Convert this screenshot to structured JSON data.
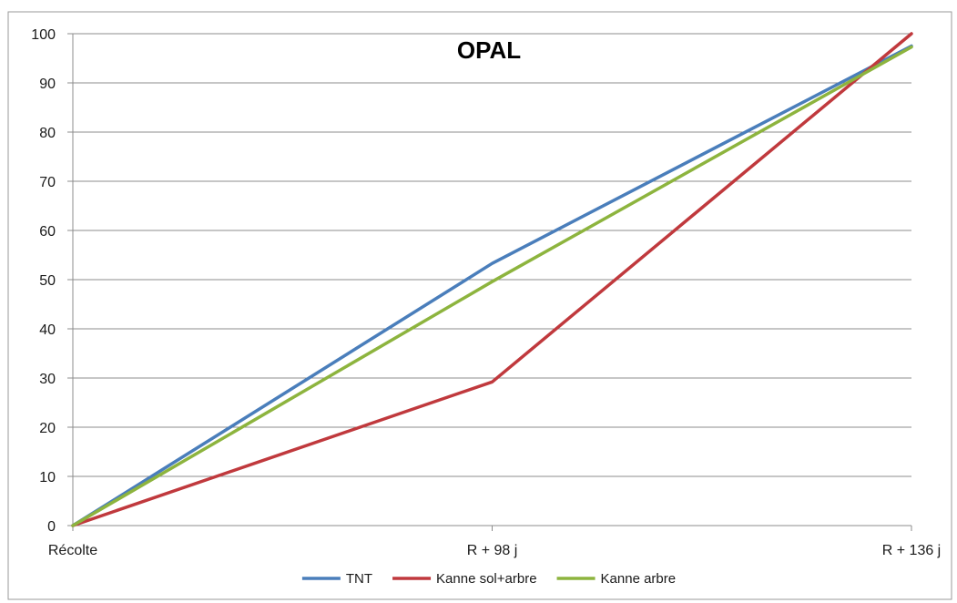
{
  "chart_data": {
    "type": "line",
    "title": "OPAL",
    "categories": [
      "Récolte",
      "R + 98 j",
      "R + 136 j"
    ],
    "ylim": [
      0,
      100
    ],
    "yticks": [
      0,
      10,
      20,
      30,
      40,
      50,
      60,
      70,
      80,
      90,
      100
    ],
    "grid": true,
    "legend": "bottom",
    "series": [
      {
        "name": "TNT",
        "color": "#4a7ebb",
        "values": [
          0,
          53.3,
          97.5
        ]
      },
      {
        "name": "Kanne sol+arbre",
        "color": "#c0393d",
        "values": [
          0,
          29.2,
          100
        ]
      },
      {
        "name": "Kanne arbre",
        "color": "#8db43e",
        "values": [
          0,
          49.6,
          97.3
        ]
      }
    ]
  }
}
